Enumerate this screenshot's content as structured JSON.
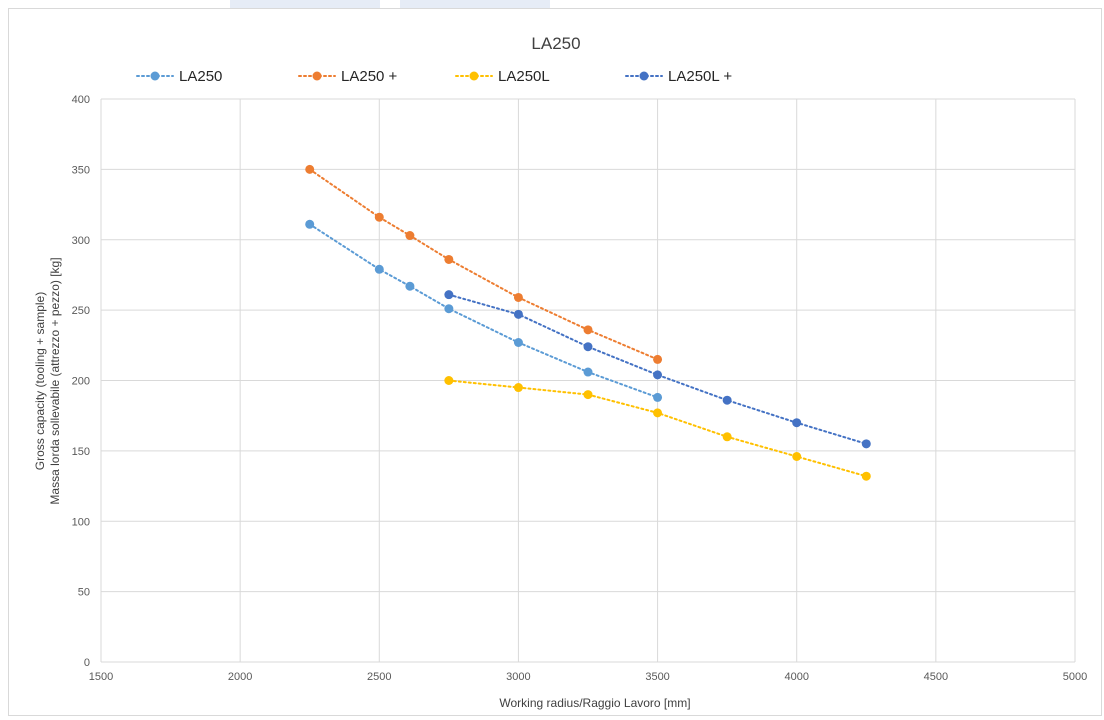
{
  "chart_data": {
    "type": "scatter",
    "title": "LA250",
    "xlabel": "Working radius/Raggio Lavoro [mm]",
    "ylabel_line1": "Gross capacity (tooling + sample)",
    "ylabel_line2": "Massa lorda sollevabile (attrezzo + pezzo) [kg]",
    "xlim": [
      1500,
      5000
    ],
    "ylim": [
      0,
      400
    ],
    "xticks": [
      "1500",
      "2000",
      "2500",
      "3000",
      "3500",
      "4000",
      "4500",
      "5000"
    ],
    "yticks": [
      "0",
      "50",
      "100",
      "150",
      "200",
      "250",
      "300",
      "350",
      "400"
    ],
    "grid": true,
    "legend_position": "top",
    "line_style": "dotted",
    "series": [
      {
        "name": "LA250",
        "color": "#5b9bd5",
        "x": [
          2250,
          2500,
          2610,
          2750,
          3000,
          3250,
          3500
        ],
        "y": [
          311,
          279,
          267,
          251,
          227,
          206,
          188
        ]
      },
      {
        "name": "LA250 +",
        "color": "#ed7d31",
        "x": [
          2250,
          2500,
          2610,
          2750,
          3000,
          3250,
          3500
        ],
        "y": [
          350,
          316,
          303,
          286,
          259,
          236,
          215
        ]
      },
      {
        "name": "LA250L",
        "color": "#ffc000",
        "x": [
          2750,
          3000,
          3250,
          3500,
          3750,
          4000,
          4250
        ],
        "y": [
          200,
          195,
          190,
          177,
          160,
          146,
          132
        ]
      },
      {
        "name": "LA250L +",
        "color": "#4472c4",
        "x": [
          2750,
          3000,
          3250,
          3500,
          3750,
          4000,
          4250
        ],
        "y": [
          261,
          247,
          224,
          204,
          186,
          170,
          155
        ]
      }
    ]
  }
}
